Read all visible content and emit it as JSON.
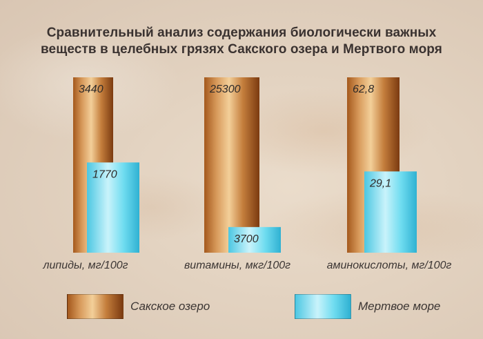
{
  "chart_data": {
    "type": "bar",
    "title_lines": [
      "Сравнительный анализ содержания биологически важных",
      "веществ в целебных грязях Сакского озера и Мертвого моря"
    ],
    "categories": [
      "липиды, мг/100г",
      "витамины, мкг/100г",
      "аминокислоты, мг/100г"
    ],
    "series": [
      {
        "name": "Сакское озеро",
        "values": [
          3440,
          25300,
          62.8
        ],
        "labels": [
          "3440",
          "25300",
          "62,8"
        ],
        "color": "#b8702c"
      },
      {
        "name": "Мертвое море",
        "values": [
          1770,
          3700,
          29.1
        ],
        "labels": [
          "1770",
          "3700",
          "29,1"
        ],
        "color": "#5fd6ec"
      }
    ],
    "legend_position": "bottom",
    "grid": false
  }
}
